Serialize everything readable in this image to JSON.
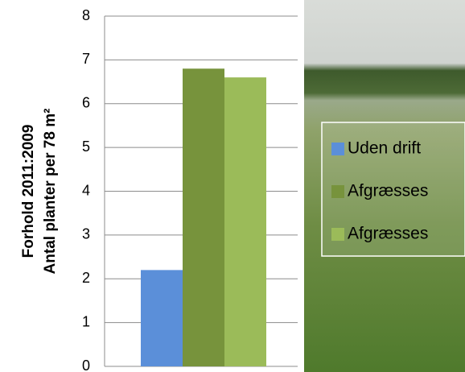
{
  "chart_data": {
    "type": "bar",
    "y_label_lines": [
      "Forhold 2011:2009",
      "Antal planter per 78 m²"
    ],
    "categories": [
      null
    ],
    "series": [
      {
        "name": "Uden drift",
        "color": "#5b8fd9",
        "values": [
          2.2
        ]
      },
      {
        "name": "Afgræsses",
        "color": "#77933c",
        "values": [
          6.8
        ]
      },
      {
        "name": "Afgræsses",
        "color": "#9bbb59",
        "values": [
          6.6
        ]
      }
    ],
    "ylim": [
      0,
      8
    ],
    "yticks": [
      0,
      1,
      2,
      3,
      4,
      5,
      6,
      7,
      8
    ],
    "grid": true,
    "legend": "right"
  }
}
